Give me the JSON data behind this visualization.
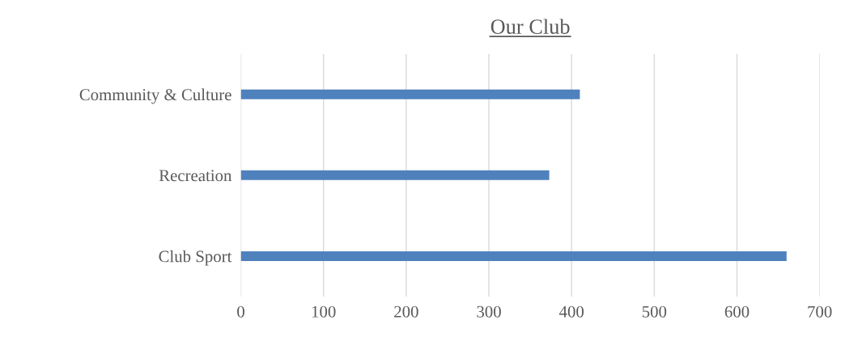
{
  "chart_data": {
    "type": "bar",
    "orientation": "horizontal",
    "title": "Our Club",
    "categories": [
      "Community & Culture",
      "Recreation",
      "Club Sport"
    ],
    "values": [
      410,
      373,
      660
    ],
    "color": "#4f81bd",
    "xlim": [
      0,
      700
    ],
    "xticks": [
      0,
      100,
      200,
      300,
      400,
      500,
      600,
      700
    ],
    "grid": "x"
  }
}
